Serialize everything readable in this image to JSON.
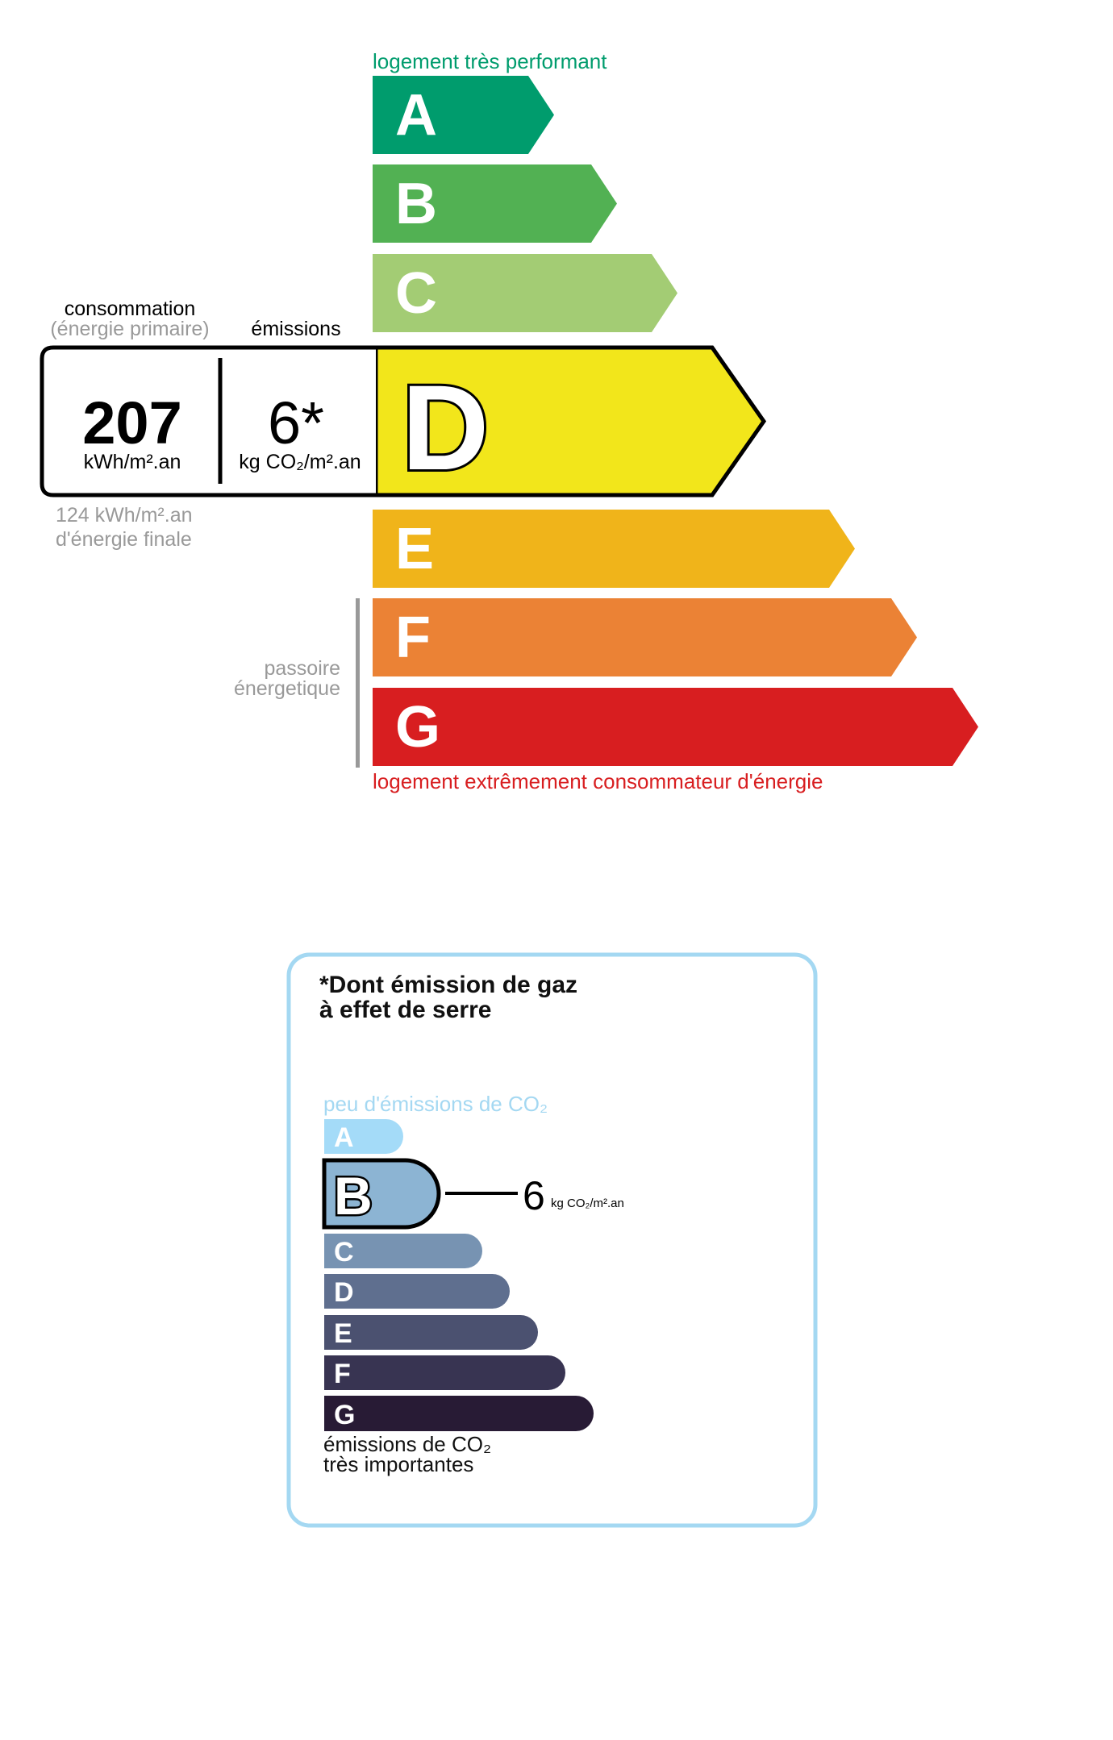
{
  "energy": {
    "top_label": "logement très performant",
    "bottom_label": "logement extrêmement consommateur d'énergie",
    "consumption_title": "consommation",
    "consumption_subtitle": "(énergie primaire)",
    "emissions_title": "émissions",
    "consumption_value": "207",
    "consumption_unit": "kWh/m².an",
    "emissions_value": "6*",
    "emissions_unit": "kg CO₂/m².an",
    "final_energy_line1": "124 kWh/m².an",
    "final_energy_line2": "d'énergie finale",
    "passoire_line1": "passoire",
    "passoire_line2": "énergetique",
    "current_class": "D",
    "classes": [
      {
        "letter": "A",
        "color": "#009c6d"
      },
      {
        "letter": "B",
        "color": "#52b153"
      },
      {
        "letter": "C",
        "color": "#a3cc74"
      },
      {
        "letter": "D",
        "color": "#f2e61b"
      },
      {
        "letter": "E",
        "color": "#f0b41a"
      },
      {
        "letter": "F",
        "color": "#eb8235"
      },
      {
        "letter": "G",
        "color": "#d81e20"
      }
    ],
    "top_label_color": "#009c6d",
    "bottom_label_color": "#d81e20"
  },
  "ghg": {
    "title_line1": "*Dont émission de gaz",
    "title_line2": "à effet de serre",
    "top_label": "peu d'émissions de CO₂",
    "bottom_label_line1": "émissions de CO₂",
    "bottom_label_line2": "très importantes",
    "current_class": "B",
    "value": "6",
    "unit": "kg CO₂/m².an",
    "border_color": "#a4d8f2",
    "classes": [
      {
        "letter": "A",
        "color": "#a4dbf8"
      },
      {
        "letter": "B",
        "color": "#8cb4d3"
      },
      {
        "letter": "C",
        "color": "#7793b2"
      },
      {
        "letter": "D",
        "color": "#5f6f8f"
      },
      {
        "letter": "E",
        "color": "#4b5170"
      },
      {
        "letter": "F",
        "color": "#383452"
      },
      {
        "letter": "G",
        "color": "#281b35"
      }
    ]
  }
}
